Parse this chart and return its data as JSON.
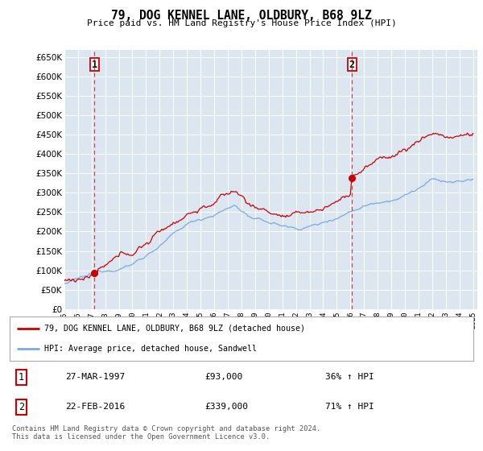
{
  "title": "79, DOG KENNEL LANE, OLDBURY, B68 9LZ",
  "subtitle": "Price paid vs. HM Land Registry's House Price Index (HPI)",
  "ylim": [
    0,
    670000
  ],
  "yticks": [
    0,
    50000,
    100000,
    150000,
    200000,
    250000,
    300000,
    350000,
    400000,
    450000,
    500000,
    550000,
    600000,
    650000
  ],
  "plot_background": "#dce6f1",
  "transaction1_date": "27-MAR-1997",
  "transaction1_price": 93000,
  "transaction1_hpi": "36% ↑ HPI",
  "transaction2_date": "22-FEB-2016",
  "transaction2_price": 339000,
  "transaction2_hpi": "71% ↑ HPI",
  "legend_line1": "79, DOG KENNEL LANE, OLDBURY, B68 9LZ (detached house)",
  "legend_line2": "HPI: Average price, detached house, Sandwell",
  "footer": "Contains HM Land Registry data © Crown copyright and database right 2024.\nThis data is licensed under the Open Government Licence v3.0.",
  "line_color_red": "#cc0000",
  "line_color_blue": "#7aaadd",
  "grid_color": "#ffffff",
  "dashed_line_color": "#cc0000",
  "t1_year": 1997.21,
  "t2_year": 2016.12,
  "t1_price": 93000,
  "t2_price": 339000
}
